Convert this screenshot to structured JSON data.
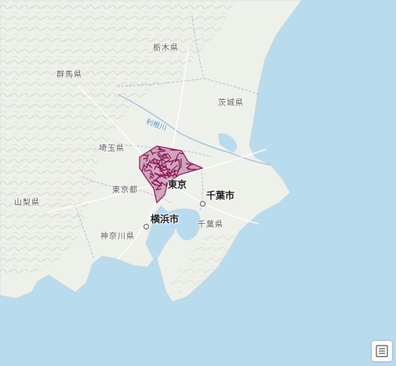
{
  "map": {
    "water_color": "#b9dbee",
    "land_color": "#eef0ea",
    "relief_color": "#dfe3d6",
    "overlay_color": "#8e1a5c",
    "prefectures": [
      {
        "id": "tochigi",
        "label": "栃木県"
      },
      {
        "id": "gunma",
        "label": "群馬県"
      },
      {
        "id": "ibaraki",
        "label": "茨城県"
      },
      {
        "id": "saitama",
        "label": "埼玉県"
      },
      {
        "id": "tokyo",
        "label": "東京都"
      },
      {
        "id": "yamanashi",
        "label": "山梨県"
      },
      {
        "id": "kanagawa",
        "label": "神奈川県"
      },
      {
        "id": "chiba",
        "label": "千葉県"
      }
    ],
    "cities": [
      {
        "id": "tokyo",
        "label": "東京"
      },
      {
        "id": "chiba",
        "label": "千葉市"
      },
      {
        "id": "yokohama",
        "label": "横浜市"
      }
    ],
    "river": {
      "label": "利根川"
    },
    "legend_button": {
      "icon": "legend-icon"
    }
  }
}
